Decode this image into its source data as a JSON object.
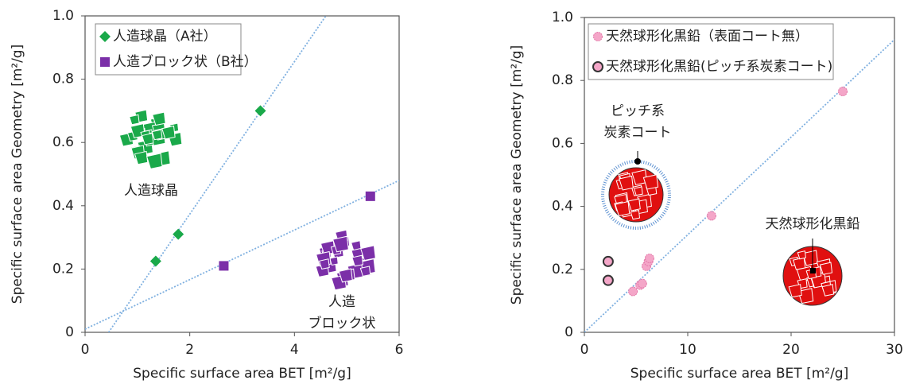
{
  "chart_data": [
    {
      "type": "scatter",
      "x_label": "Specific surface area BET [m²/g]",
      "y_label": "Specific surface area Geometry [m²/g]",
      "xlim": [
        0,
        6
      ],
      "ylim": [
        0,
        1
      ],
      "xticks": [
        0,
        2,
        4,
        6
      ],
      "yticks": [
        0,
        0.2,
        0.4,
        0.6,
        0.8,
        {
          "value": 1,
          "label": "1.0"
        }
      ],
      "series": [
        {
          "name": "人造球晶（A社）",
          "color": "#1aa94a",
          "marker": "diamond",
          "x": [
            1.35,
            1.78,
            3.35
          ],
          "values": [
            0.225,
            0.31,
            0.7
          ],
          "trend": {
            "x": [
              0.45,
              4.6
            ],
            "y": [
              0,
              1
            ]
          }
        },
        {
          "name": "人造ブロック状（B社）",
          "color": "#7b2fa8",
          "marker": "square",
          "x": [
            2.65,
            5.45
          ],
          "values": [
            0.21,
            0.43
          ],
          "trend": {
            "x": [
              0,
              6
            ],
            "y": [
              0.01,
              0.48
            ]
          }
        }
      ],
      "annotations": [
        {
          "lines": [
            "人造球晶"
          ],
          "color": "#1aa94a"
        },
        {
          "lines": [
            "人造",
            "ブロック状"
          ],
          "color": "#7b2fa8"
        }
      ]
    },
    {
      "type": "scatter",
      "x_label": "Specific surface area BET [m²/g]",
      "y_label": "Specific surface area Geometry [m²/g]",
      "xlim": [
        0,
        30
      ],
      "ylim": [
        0,
        1
      ],
      "xticks": [
        0,
        10,
        20,
        30
      ],
      "yticks": [
        0,
        0.2,
        0.4,
        0.6,
        0.8,
        {
          "value": 1,
          "label": "1.0"
        }
      ],
      "series": [
        {
          "name": "天然球形化黒鉛（表面コート無）",
          "color": "#f4a6c8",
          "marker": "star",
          "x": [
            4.7,
            5.4,
            5.6,
            6.0,
            6.2,
            6.3,
            12.3,
            25
          ],
          "values": [
            0.13,
            0.15,
            0.155,
            0.21,
            0.225,
            0.235,
            0.37,
            0.765
          ],
          "trend": {
            "x": [
              0,
              30
            ],
            "y": [
              0,
              0.93
            ]
          }
        },
        {
          "name": "天然球形化黒鉛(ピッチ系炭素コート)",
          "color": "#f4a6c8",
          "marker": "ring",
          "x": [
            2.3,
            2.3
          ],
          "values": [
            0.225,
            0.165
          ]
        }
      ],
      "annotations": [
        {
          "lines": [
            "ピッチ系",
            "炭素コート"
          ],
          "color": "#222"
        },
        {
          "lines": [
            "天然球形化黒鉛"
          ],
          "color": "#222"
        }
      ]
    }
  ]
}
